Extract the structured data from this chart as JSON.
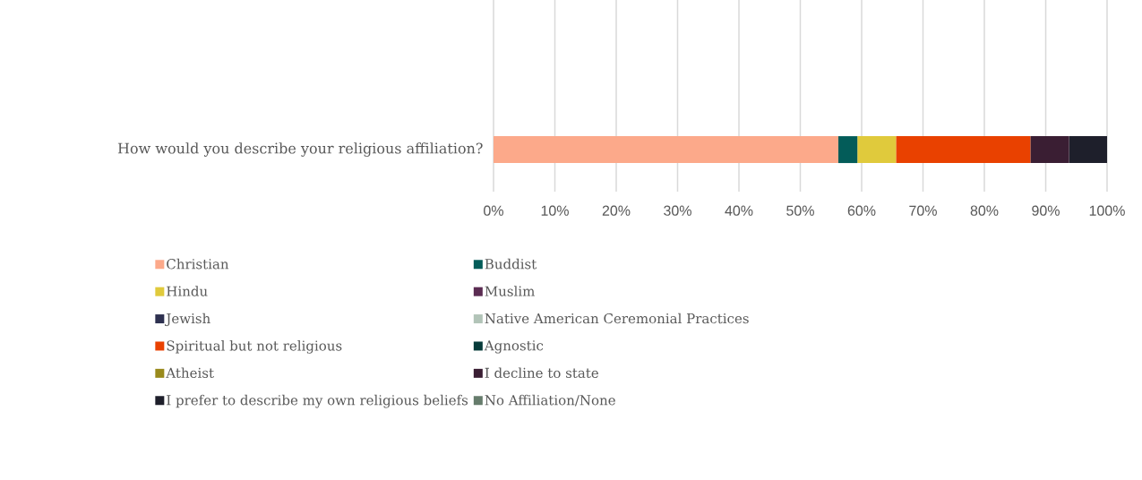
{
  "chart_data": {
    "type": "bar",
    "orientation": "horizontal",
    "stacked": true,
    "categories": [
      "How would you describe your religious affiliation?"
    ],
    "series": [
      {
        "name": "Christian",
        "color": "#fca98a",
        "values": [
          56.2
        ]
      },
      {
        "name": "Buddist",
        "color": "#035c59",
        "values": [
          3.1
        ]
      },
      {
        "name": "Hindu",
        "color": "#e0ca3c",
        "values": [
          6.3
        ]
      },
      {
        "name": "Muslim",
        "color": "#5b2c52",
        "values": [
          0
        ]
      },
      {
        "name": "Jewish",
        "color": "#2e3150",
        "values": [
          0
        ]
      },
      {
        "name": "Native American Ceremonial Practices",
        "color": "#b2c4b8",
        "values": [
          0
        ]
      },
      {
        "name": "Spiritual but not religious",
        "color": "#e94100",
        "values": [
          21.9
        ]
      },
      {
        "name": "Agnostic",
        "color": "#073b3a",
        "values": [
          0
        ]
      },
      {
        "name": "Atheist",
        "color": "#998a1c",
        "values": [
          0
        ]
      },
      {
        "name": "I decline to state",
        "color": "#3a1e33",
        "values": [
          6.3
        ]
      },
      {
        "name": "I prefer to describe my own religious beliefs",
        "color": "#1e1f2b",
        "values": [
          6.2
        ]
      },
      {
        "name": "No Affiliation/None",
        "color": "#667c6c",
        "values": [
          0
        ]
      }
    ],
    "xlim": [
      0,
      100
    ],
    "xticks": [
      {
        "value": 0,
        "label": "0%"
      },
      {
        "value": 10,
        "label": "10%"
      },
      {
        "value": 20,
        "label": "20%"
      },
      {
        "value": 30,
        "label": "30%"
      },
      {
        "value": 40,
        "label": "40%"
      },
      {
        "value": 50,
        "label": "50%"
      },
      {
        "value": 60,
        "label": "60%"
      },
      {
        "value": 70,
        "label": "70%"
      },
      {
        "value": 80,
        "label": "80%"
      },
      {
        "value": 90,
        "label": "90%"
      },
      {
        "value": 100,
        "label": "100%"
      }
    ],
    "grid": "x",
    "legend": "bottom"
  }
}
